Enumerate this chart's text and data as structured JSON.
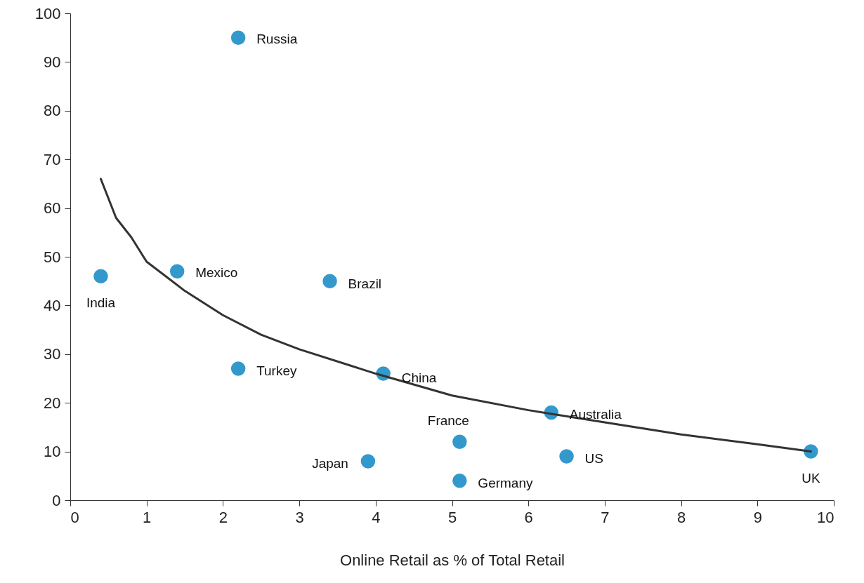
{
  "chart_data": {
    "type": "scatter",
    "xlabel": "Online Retail as % of Total Retail",
    "xlim": [
      0,
      10
    ],
    "xticks": [
      0,
      1,
      2,
      3,
      4,
      5,
      6,
      7,
      8,
      9,
      10
    ],
    "ylim": [
      0,
      100
    ],
    "yticks": [
      0,
      10,
      20,
      30,
      40,
      50,
      60,
      70,
      80,
      90,
      100
    ],
    "grid": false,
    "series": [
      {
        "color": "#3399cc",
        "marker": "circle",
        "x": [
          0.4,
          1.4,
          2.2,
          3.4,
          2.2,
          4.1,
          6.3,
          5.1,
          3.9,
          6.5,
          5.1,
          9.7
        ],
        "values": [
          46,
          47,
          95,
          45,
          27,
          26,
          18,
          12,
          8,
          9,
          4,
          10
        ]
      },
      {
        "type": "line",
        "color": "#333333",
        "line_style": "solid",
        "marker": "none",
        "x": [
          0.4,
          0.6,
          0.8,
          1,
          1.5,
          2,
          2.5,
          3,
          4,
          5,
          6,
          7,
          8,
          9,
          9.7
        ],
        "values": [
          66,
          58,
          54,
          49,
          43,
          38,
          34,
          31,
          26,
          21.5,
          18.5,
          16,
          13.5,
          11.5,
          10
        ]
      }
    ],
    "annotations": [
      {
        "text": "India",
        "x": 0.4,
        "y": 46
      },
      {
        "text": "Mexico",
        "x": 1.4,
        "y": 47
      },
      {
        "text": "Russia",
        "x": 2.2,
        "y": 95
      },
      {
        "text": "Brazil",
        "x": 3.4,
        "y": 45
      },
      {
        "text": "Turkey",
        "x": 2.2,
        "y": 27
      },
      {
        "text": "China",
        "x": 4.1,
        "y": 26
      },
      {
        "text": "Australia",
        "x": 6.3,
        "y": 18
      },
      {
        "text": "France",
        "x": 5.1,
        "y": 12
      },
      {
        "text": "Japan",
        "x": 3.9,
        "y": 8
      },
      {
        "text": "US",
        "x": 6.5,
        "y": 9
      },
      {
        "text": "Germany",
        "x": 5.1,
        "y": 4
      },
      {
        "text": "UK",
        "x": 9.7,
        "y": 10
      }
    ]
  }
}
